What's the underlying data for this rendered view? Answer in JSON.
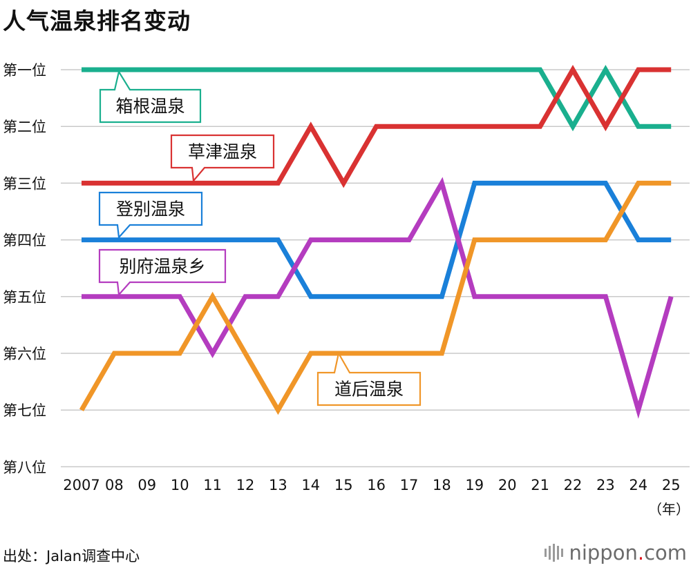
{
  "chart_data": {
    "type": "line",
    "title": "人气温泉排名变动",
    "ylabels": [
      "第一位",
      "第二位",
      "第三位",
      "第四位",
      "第五位",
      "第六位",
      "第七位",
      "第八位"
    ],
    "categories": [
      "2007",
      "08",
      "09",
      "10",
      "11",
      "12",
      "13",
      "14",
      "15",
      "16",
      "17",
      "18",
      "19",
      "20",
      "21",
      "22",
      "23",
      "24",
      "25"
    ],
    "xunit": "（年）",
    "ylim": [
      1,
      8
    ],
    "series": [
      {
        "name": "箱根温泉",
        "color": "#1aaf8e",
        "values": [
          1,
          1,
          1,
          1,
          1,
          1,
          1,
          1,
          1,
          1,
          1,
          1,
          1,
          1,
          1,
          2,
          1,
          2,
          2
        ]
      },
      {
        "name": "草津温泉",
        "color": "#d93232",
        "values": [
          3,
          3,
          3,
          3,
          3,
          3,
          3,
          2,
          3,
          2,
          2,
          2,
          2,
          2,
          2,
          1,
          2,
          1,
          1
        ]
      },
      {
        "name": "登别温泉",
        "color": "#1a80d9",
        "values": [
          4,
          4,
          4,
          4,
          4,
          4,
          4,
          5,
          5,
          5,
          5,
          5,
          3,
          3,
          3,
          3,
          3,
          4,
          4
        ]
      },
      {
        "name": "别府温泉乡",
        "color": "#b43cbf",
        "values": [
          5,
          5,
          5,
          5,
          6,
          5,
          5,
          4,
          4,
          4,
          4,
          3,
          5,
          5,
          5,
          5,
          5,
          7,
          5
        ]
      },
      {
        "name": "道后温泉",
        "color": "#f09628",
        "values": [
          7,
          6,
          6,
          6,
          5,
          6,
          7,
          6,
          6,
          6,
          6,
          6,
          4,
          4,
          4,
          4,
          4,
          3,
          3
        ]
      }
    ]
  },
  "footer": {
    "source": "出处：Jalan调查中心",
    "logo_main": "nippon",
    "logo_dot": ".",
    "logo_tld": "com"
  }
}
